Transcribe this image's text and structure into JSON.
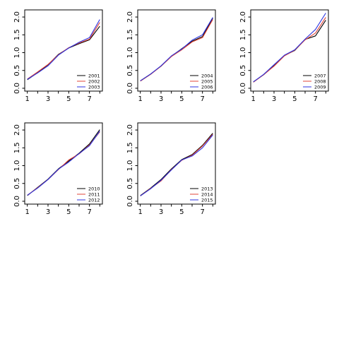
{
  "colors": {
    "series_1": "#000000",
    "series_2": "#e0453a",
    "series_3": "#2d34e0"
  },
  "chart_data": [
    {
      "type": "line",
      "x": [
        1,
        2,
        3,
        4,
        5,
        6,
        7,
        8
      ],
      "xticks": [
        "1",
        "3",
        "5",
        "7"
      ],
      "yticks": [
        "0.0",
        "0.5",
        "1.0",
        "1.5",
        "2.0"
      ],
      "xlim": [
        0.75,
        8.25
      ],
      "ylim": [
        -0.08,
        2.2
      ],
      "legend_position": "bottom-right",
      "series": [
        {
          "name": "2001",
          "color": "#000000",
          "values": [
            0.24,
            0.44,
            0.66,
            0.95,
            1.13,
            1.25,
            1.36,
            1.74
          ]
        },
        {
          "name": "2002",
          "color": "#e0453a",
          "values": [
            0.26,
            0.46,
            0.67,
            0.94,
            1.14,
            1.27,
            1.38,
            1.85
          ]
        },
        {
          "name": "2003",
          "color": "#2d34e0",
          "values": [
            0.25,
            0.43,
            0.63,
            0.93,
            1.13,
            1.29,
            1.42,
            1.93
          ]
        }
      ]
    },
    {
      "type": "line",
      "x": [
        1,
        2,
        3,
        4,
        5,
        6,
        7,
        8
      ],
      "xticks": [
        "1",
        "3",
        "5",
        "7"
      ],
      "yticks": [
        "0.0",
        "0.5",
        "1.0",
        "1.5",
        "2.0"
      ],
      "xlim": [
        0.75,
        8.25
      ],
      "ylim": [
        -0.08,
        2.2
      ],
      "legend_position": "bottom-right",
      "series": [
        {
          "name": "2004",
          "color": "#000000",
          "values": [
            0.21,
            0.4,
            0.62,
            0.9,
            1.11,
            1.32,
            1.45,
            1.97
          ]
        },
        {
          "name": "2005",
          "color": "#e0453a",
          "values": [
            0.2,
            0.39,
            0.62,
            0.89,
            1.08,
            1.3,
            1.42,
            1.93
          ]
        },
        {
          "name": "2006",
          "color": "#2d34e0",
          "values": [
            0.21,
            0.4,
            0.63,
            0.91,
            1.1,
            1.35,
            1.5,
            1.99
          ]
        }
      ]
    },
    {
      "type": "line",
      "x": [
        1,
        2,
        3,
        4,
        5,
        6,
        7,
        8
      ],
      "xticks": [
        "1",
        "3",
        "5",
        "7"
      ],
      "yticks": [
        "0.0",
        "0.5",
        "1.0",
        "1.5",
        "2.0"
      ],
      "xlim": [
        0.75,
        8.25
      ],
      "ylim": [
        -0.08,
        2.2
      ],
      "legend_position": "bottom-right",
      "series": [
        {
          "name": "2007",
          "color": "#000000",
          "values": [
            0.18,
            0.38,
            0.64,
            0.92,
            1.06,
            1.37,
            1.47,
            1.91
          ]
        },
        {
          "name": "2008",
          "color": "#e0453a",
          "values": [
            0.17,
            0.38,
            0.62,
            0.91,
            1.07,
            1.36,
            1.55,
            1.99
          ]
        },
        {
          "name": "2009",
          "color": "#2d34e0",
          "values": [
            0.18,
            0.39,
            0.66,
            0.93,
            1.08,
            1.38,
            1.65,
            2.11
          ]
        }
      ]
    },
    {
      "type": "line",
      "x": [
        1,
        2,
        3,
        4,
        5,
        6,
        7,
        8
      ],
      "xticks": [
        "1",
        "3",
        "5",
        "7"
      ],
      "yticks": [
        "0.0",
        "0.5",
        "1.0",
        "1.5",
        "2.0"
      ],
      "xlim": [
        0.75,
        8.25
      ],
      "ylim": [
        -0.08,
        2.2
      ],
      "legend_position": "bottom-right",
      "series": [
        {
          "name": "2010",
          "color": "#000000",
          "values": [
            0.16,
            0.39,
            0.62,
            0.91,
            1.13,
            1.35,
            1.61,
            2.01
          ]
        },
        {
          "name": "2011",
          "color": "#e0453a",
          "values": [
            0.17,
            0.38,
            0.61,
            0.89,
            1.16,
            1.33,
            1.58,
            1.95
          ]
        },
        {
          "name": "2012",
          "color": "#2d34e0",
          "values": [
            0.17,
            0.37,
            0.61,
            0.9,
            1.1,
            1.34,
            1.56,
            1.97
          ]
        }
      ]
    },
    {
      "type": "line",
      "x": [
        1,
        2,
        3,
        4,
        5,
        6,
        7,
        8
      ],
      "xticks": [
        "1",
        "3",
        "5",
        "7"
      ],
      "yticks": [
        "0.0",
        "0.5",
        "1.0",
        "1.5",
        "2.0"
      ],
      "xlim": [
        0.75,
        8.25
      ],
      "ylim": [
        -0.08,
        2.2
      ],
      "legend_position": "bottom-right",
      "series": [
        {
          "name": "2013",
          "color": "#000000",
          "values": [
            0.16,
            0.37,
            0.61,
            0.91,
            1.17,
            1.31,
            1.57,
            1.91
          ]
        },
        {
          "name": "2014",
          "color": "#e0453a",
          "values": [
            0.15,
            0.36,
            0.57,
            0.89,
            1.15,
            1.29,
            1.55,
            1.88
          ]
        },
        {
          "name": "2015",
          "color": "#2d34e0",
          "values": [
            0.15,
            0.35,
            0.59,
            0.88,
            1.16,
            1.27,
            1.5,
            1.86
          ]
        }
      ]
    }
  ]
}
